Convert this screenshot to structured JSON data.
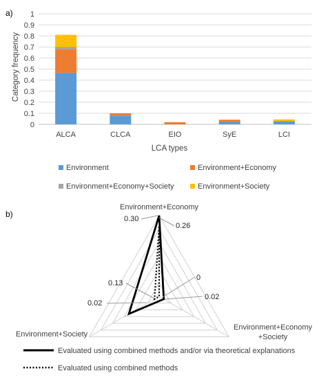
{
  "chart_data": [
    {
      "type": "bar",
      "stacked": true,
      "panel_label": "a)",
      "categories": [
        "ALCA",
        "CLCA",
        "EIO",
        "SyE",
        "LCI"
      ],
      "series": [
        {
          "name": "Environment",
          "color": "#5B9BD5",
          "values": [
            0.465,
            0.08,
            0.0,
            0.022,
            0.03
          ]
        },
        {
          "name": "Environment+Economy",
          "color": "#ED7D31",
          "values": [
            0.215,
            0.02,
            0.02,
            0.02,
            0.0
          ]
        },
        {
          "name": "Environment+Economy+Society",
          "color": "#A5A5A5",
          "values": [
            0.02,
            0.0,
            0.0,
            0.0,
            0.0
          ]
        },
        {
          "name": "Environment+Society",
          "color": "#FFC000",
          "values": [
            0.11,
            0.0,
            0.0,
            0.0,
            0.015
          ]
        }
      ],
      "xlabel": "LCA types",
      "ylabel": "Category frequency",
      "ylim": [
        0,
        1
      ],
      "yticks": [
        "0",
        "0.1",
        "0.2",
        "0.3",
        "0.4",
        "0.5",
        "0.6",
        "0.7",
        "0.8",
        "0.9",
        "1"
      ],
      "grid": true,
      "legend": "bottom"
    },
    {
      "type": "radar",
      "panel_label": "b)",
      "axes": [
        "Environment+Economy",
        "Environment+Economy+Society",
        "Environment+Society"
      ],
      "axis_display": [
        "Environment+Economy",
        "Environment+Economy\n+Society",
        "Environment+Society"
      ],
      "rmax": 0.3,
      "rings": 6,
      "series": [
        {
          "name": "Evaluated using combined methods and/or via theoretical explanations",
          "style": "solid",
          "values": [
            0.3,
            0.02,
            0.13
          ],
          "labels": [
            "0.30",
            "0.02",
            "0.13"
          ]
        },
        {
          "name": "Evaluated using combined methods",
          "style": "dotted",
          "values": [
            0.26,
            0.0,
            0.02
          ],
          "labels": [
            "0.26",
            "0",
            "0.02"
          ]
        }
      ],
      "legend": "bottom"
    }
  ]
}
